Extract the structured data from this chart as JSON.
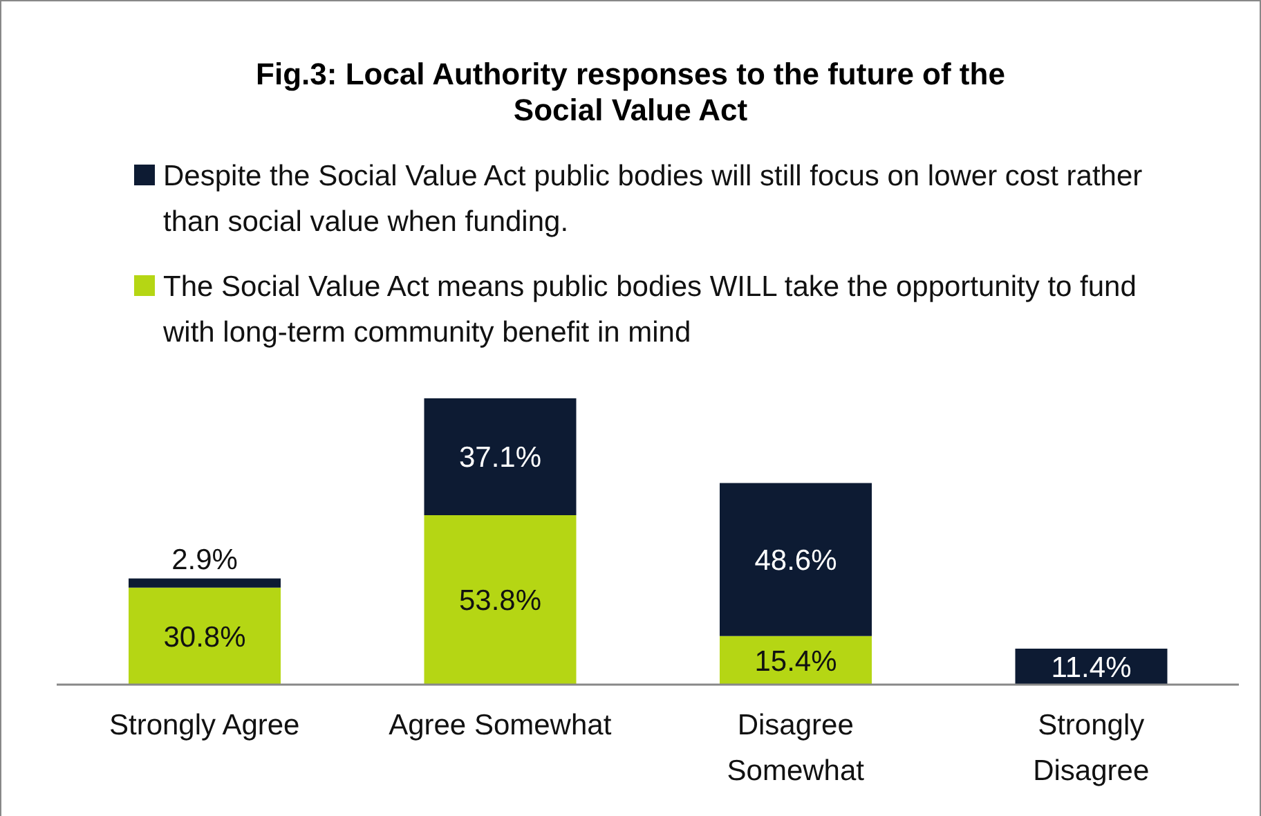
{
  "chart_data": {
    "type": "bar",
    "title": "Fig.3: Local Authority responses to the future of the Social Value Act",
    "categories": [
      "Strongly Agree",
      "Agree Somewhat",
      "Disagree Somewhat",
      "Strongly Disagree"
    ],
    "stacked": true,
    "legend": "top",
    "series": [
      {
        "name": "The Social Value Act means public bodies WILL take the opportunity to fund with long-term community benefit in mind",
        "color": "#b5d614",
        "values": [
          30.8,
          53.8,
          15.4,
          null
        ],
        "value_labels": [
          "30.8%",
          "53.8%",
          "15.4%",
          null
        ]
      },
      {
        "name": "Despite the Social Value Act public bodies will still focus on lower cost rather than social value when funding.",
        "color": "#0d1b33",
        "values": [
          2.9,
          37.1,
          48.6,
          11.4
        ],
        "value_labels": [
          "2.9%",
          "37.1%",
          "48.6%",
          "11.4%"
        ]
      }
    ]
  }
}
